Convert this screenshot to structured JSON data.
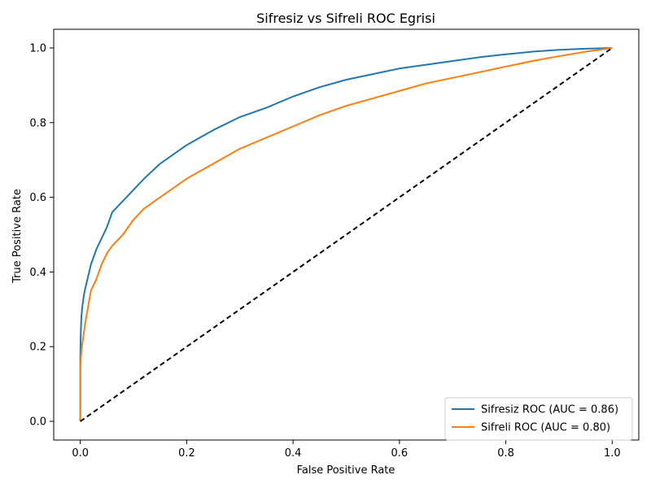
{
  "chart_data": {
    "type": "line",
    "title": "Sifresiz vs Sifreli ROC Egrisi",
    "xlabel": "False Positive Rate",
    "ylabel": "True Positive Rate",
    "xlim": [
      -0.05,
      1.05
    ],
    "ylim": [
      -0.05,
      1.05
    ],
    "xticks": [
      0.0,
      0.2,
      0.4,
      0.6,
      0.8,
      1.0
    ],
    "yticks": [
      0.0,
      0.2,
      0.4,
      0.6,
      0.8,
      1.0
    ],
    "xtick_labels": [
      "0.0",
      "0.2",
      "0.4",
      "0.6",
      "0.8",
      "1.0"
    ],
    "ytick_labels": [
      "0.0",
      "0.2",
      "0.4",
      "0.6",
      "0.8",
      "1.0"
    ],
    "grid": false,
    "legend_position": "lower-right",
    "series": [
      {
        "name": "Sifresiz ROC (AUC = 0.86)",
        "color": "#1f77b4",
        "style": "solid",
        "points": [
          [
            0.0,
            0.0
          ],
          [
            0.0,
            0.17
          ],
          [
            0.001,
            0.24
          ],
          [
            0.002,
            0.28
          ],
          [
            0.004,
            0.31
          ],
          [
            0.007,
            0.34
          ],
          [
            0.01,
            0.36
          ],
          [
            0.015,
            0.39
          ],
          [
            0.02,
            0.42
          ],
          [
            0.03,
            0.46
          ],
          [
            0.04,
            0.49
          ],
          [
            0.05,
            0.52
          ],
          [
            0.06,
            0.56
          ],
          [
            0.08,
            0.59
          ],
          [
            0.1,
            0.62
          ],
          [
            0.12,
            0.65
          ],
          [
            0.15,
            0.69
          ],
          [
            0.2,
            0.74
          ],
          [
            0.25,
            0.78
          ],
          [
            0.3,
            0.815
          ],
          [
            0.35,
            0.84
          ],
          [
            0.4,
            0.87
          ],
          [
            0.45,
            0.895
          ],
          [
            0.5,
            0.915
          ],
          [
            0.55,
            0.93
          ],
          [
            0.6,
            0.945
          ],
          [
            0.65,
            0.955
          ],
          [
            0.7,
            0.965
          ],
          [
            0.75,
            0.975
          ],
          [
            0.8,
            0.983
          ],
          [
            0.85,
            0.99
          ],
          [
            0.9,
            0.995
          ],
          [
            0.95,
            0.998
          ],
          [
            1.0,
            1.0
          ]
        ]
      },
      {
        "name": "Sifreli ROC (AUC = 0.80)",
        "color": "#ff7f0e",
        "style": "solid",
        "points": [
          [
            0.0,
            0.0
          ],
          [
            0.0,
            0.14
          ],
          [
            0.001,
            0.17
          ],
          [
            0.003,
            0.2
          ],
          [
            0.006,
            0.23
          ],
          [
            0.01,
            0.27
          ],
          [
            0.015,
            0.31
          ],
          [
            0.02,
            0.35
          ],
          [
            0.03,
            0.38
          ],
          [
            0.04,
            0.42
          ],
          [
            0.05,
            0.45
          ],
          [
            0.06,
            0.47
          ],
          [
            0.08,
            0.5
          ],
          [
            0.1,
            0.54
          ],
          [
            0.12,
            0.57
          ],
          [
            0.15,
            0.6
          ],
          [
            0.2,
            0.65
          ],
          [
            0.25,
            0.69
          ],
          [
            0.3,
            0.73
          ],
          [
            0.35,
            0.76
          ],
          [
            0.4,
            0.79
          ],
          [
            0.45,
            0.82
          ],
          [
            0.5,
            0.845
          ],
          [
            0.55,
            0.865
          ],
          [
            0.6,
            0.885
          ],
          [
            0.65,
            0.905
          ],
          [
            0.7,
            0.92
          ],
          [
            0.75,
            0.935
          ],
          [
            0.8,
            0.95
          ],
          [
            0.85,
            0.965
          ],
          [
            0.9,
            0.978
          ],
          [
            0.95,
            0.99
          ],
          [
            1.0,
            1.0
          ]
        ]
      },
      {
        "name": "",
        "color": "#000000",
        "style": "dashed",
        "points": [
          [
            0.0,
            0.0
          ],
          [
            1.0,
            1.0
          ]
        ]
      }
    ]
  }
}
